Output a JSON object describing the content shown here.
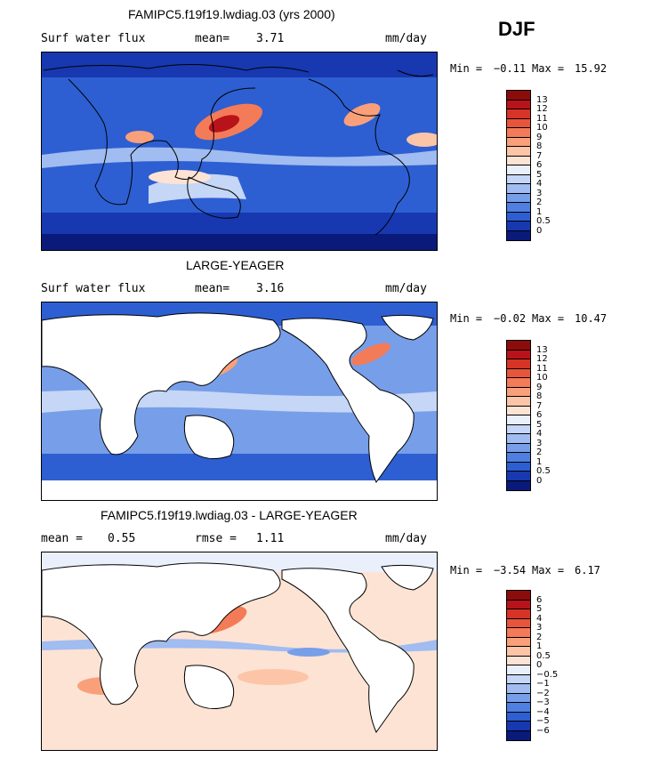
{
  "season": "DJF",
  "colors": {
    "positive": [
      "#fde3d4",
      "#fcc5a8",
      "#f9a07b",
      "#f47b58",
      "#e8553a",
      "#d63427",
      "#b8131a",
      "#8c0c0c"
    ],
    "negative": [
      "#eaf0fb",
      "#c5d6f6",
      "#a0bcf0",
      "#779ee8",
      "#4f7fe0",
      "#2d5fd2",
      "#1738b0",
      "#0a1a7a"
    ]
  },
  "panels": [
    {
      "title": "FAMIPC5.f19f19.lwdiag.03 (yrs 2000)",
      "variable": "Surf water flux",
      "stat_label": "mean=",
      "stat_value": "3.71",
      "units": "mm/day",
      "min_label": "Min =",
      "min_value": "−0.11",
      "max_label": "Max =",
      "max_value": "15.92",
      "colorbar_labels": [
        "13",
        "12",
        "11",
        "10",
        "9",
        "8",
        "7",
        "6",
        "5",
        "4",
        "3",
        "2",
        "1",
        "0.5",
        "0"
      ],
      "map": {
        "land_fill": false,
        "style": "model"
      }
    },
    {
      "title": "LARGE-YEAGER",
      "variable": "Surf water flux",
      "stat_label": "mean=",
      "stat_value": "3.16",
      "units": "mm/day",
      "min_label": "Min =",
      "min_value": "−0.02",
      "max_label": "Max =",
      "max_value": "10.47",
      "colorbar_labels": [
        "13",
        "12",
        "11",
        "10",
        "9",
        "8",
        "7",
        "6",
        "5",
        "4",
        "3",
        "2",
        "1",
        "0.5",
        "0"
      ],
      "map": {
        "land_fill": true,
        "style": "obs"
      }
    },
    {
      "title": "FAMIPC5.f19f19.lwdiag.03 - LARGE-YEAGER",
      "stat1_label": "mean =",
      "stat1_value": "0.55",
      "stat2_label": "rmse =",
      "stat2_value": "1.11",
      "units": "mm/day",
      "min_label": "Min =",
      "min_value": "−3.54",
      "max_label": "Max =",
      "max_value": "6.17",
      "colorbar_labels": [
        "6",
        "5",
        "4",
        "3",
        "2",
        "1",
        "0.5",
        "0",
        "−0.5",
        "−1",
        "−2",
        "−3",
        "−4",
        "−5",
        "−6"
      ],
      "map": {
        "land_fill": true,
        "style": "diff"
      }
    }
  ]
}
